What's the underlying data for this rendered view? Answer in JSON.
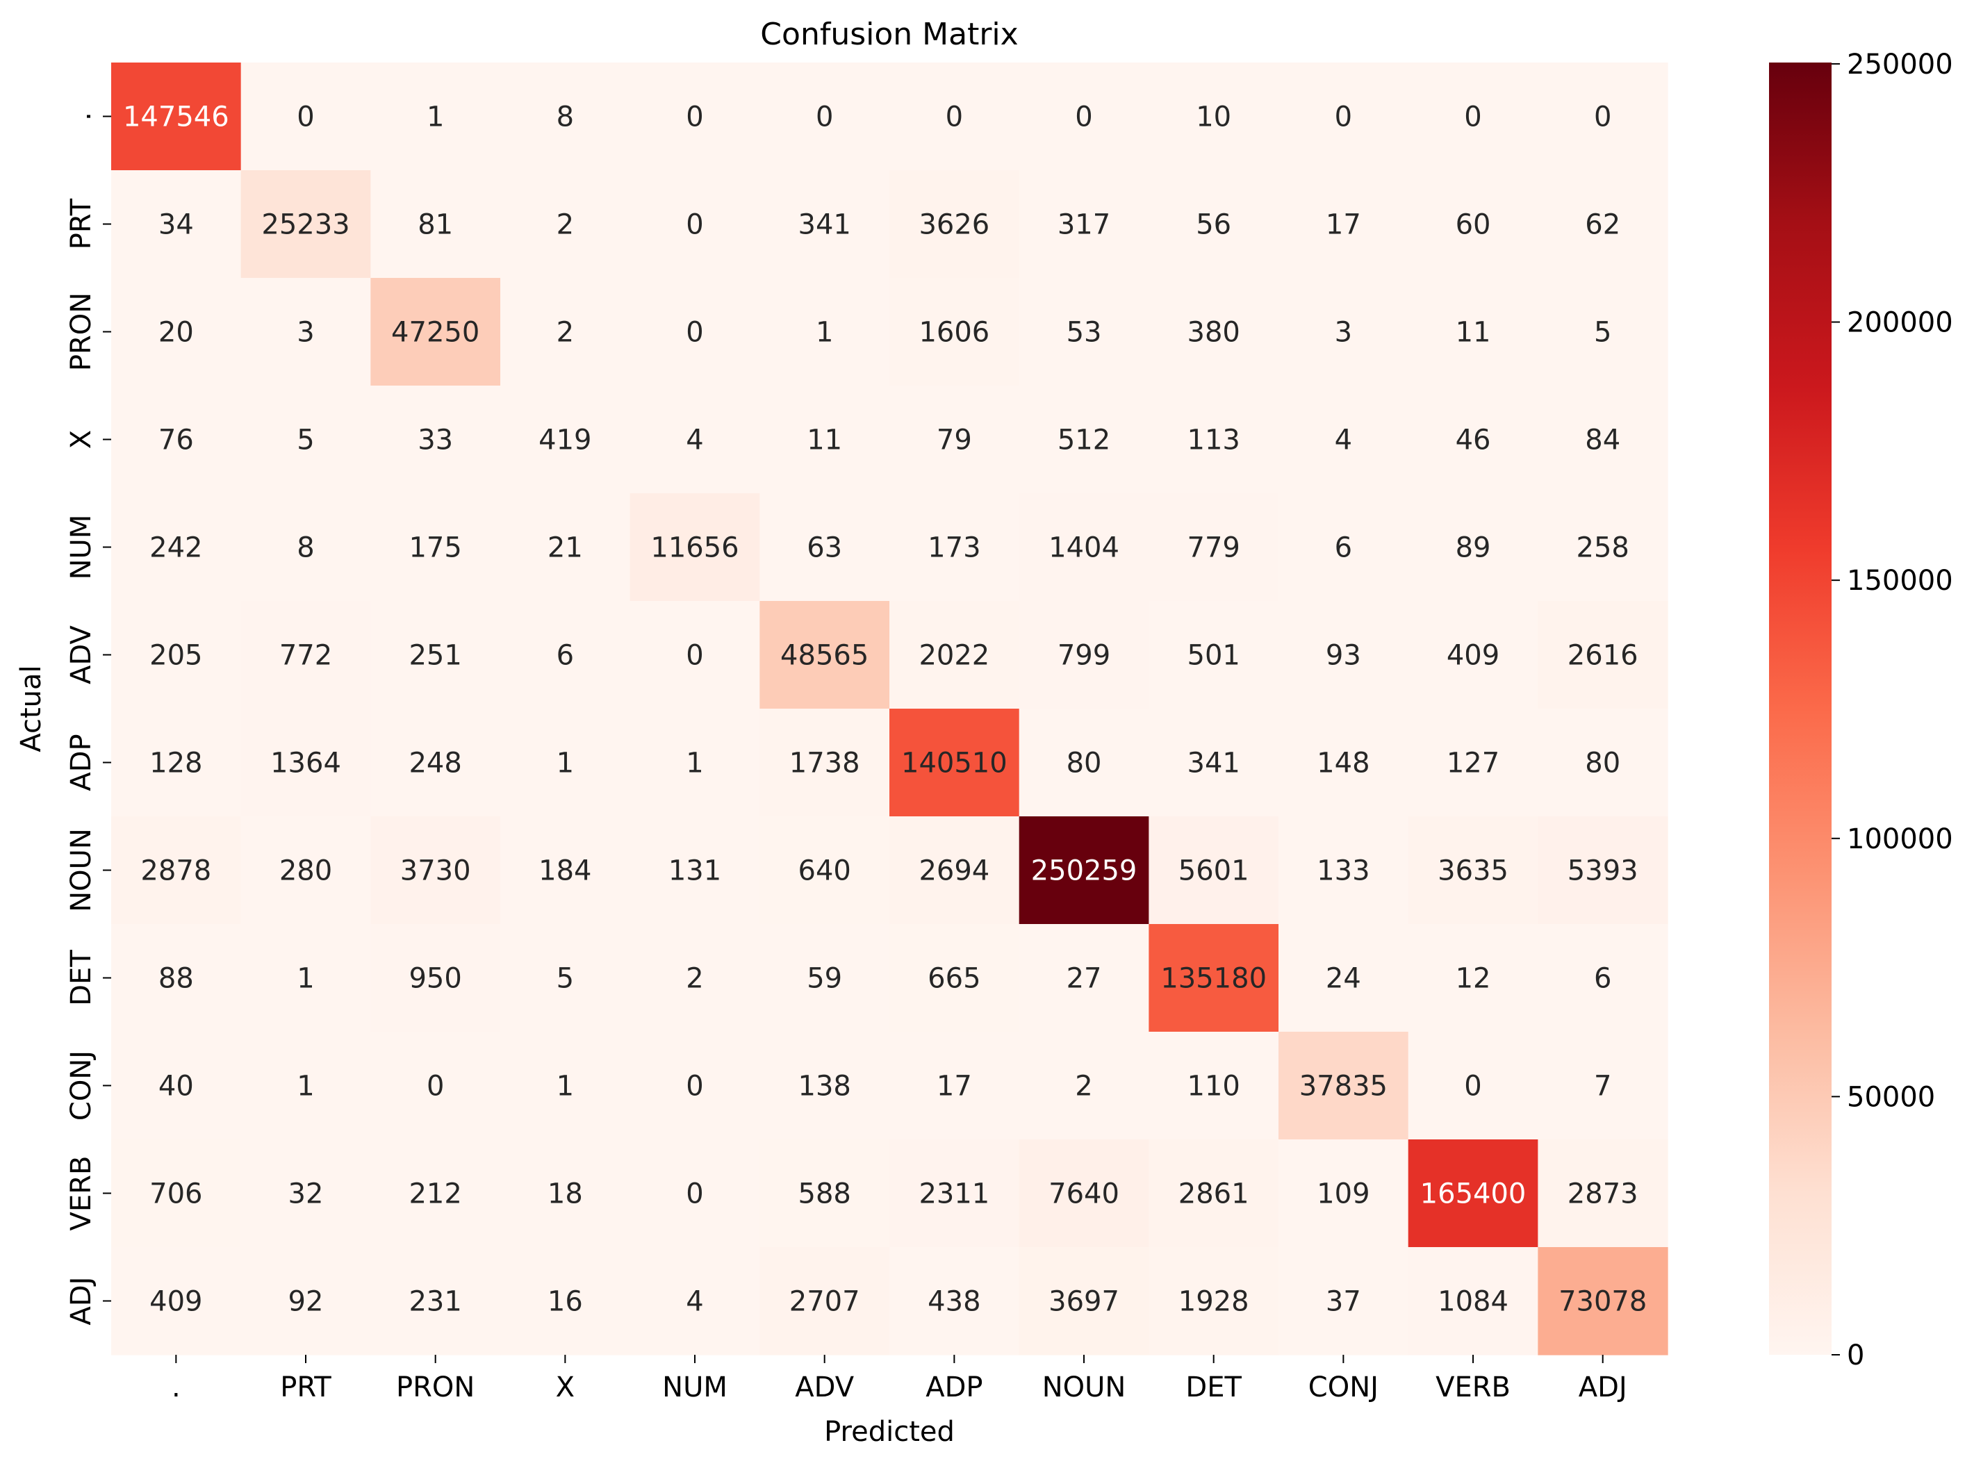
{
  "chart_data": {
    "type": "heatmap",
    "title": "Confusion Matrix",
    "xlabel": "Predicted",
    "ylabel": "Actual",
    "x_categories": [
      ".",
      "PRT",
      "PRON",
      "X",
      "NUM",
      "ADV",
      "ADP",
      "NOUN",
      "DET",
      "CONJ",
      "VERB",
      "ADJ"
    ],
    "y_categories": [
      ".",
      "PRT",
      "PRON",
      "X",
      "NUM",
      "ADV",
      "ADP",
      "NOUN",
      "DET",
      "CONJ",
      "VERB",
      "ADJ"
    ],
    "values": [
      [
        147546,
        0,
        1,
        8,
        0,
        0,
        0,
        0,
        10,
        0,
        0,
        0
      ],
      [
        34,
        25233,
        81,
        2,
        0,
        341,
        3626,
        317,
        56,
        17,
        60,
        62
      ],
      [
        20,
        3,
        47250,
        2,
        0,
        1,
        1606,
        53,
        380,
        3,
        11,
        5
      ],
      [
        76,
        5,
        33,
        419,
        4,
        11,
        79,
        512,
        113,
        4,
        46,
        84
      ],
      [
        242,
        8,
        175,
        21,
        11656,
        63,
        173,
        1404,
        779,
        6,
        89,
        258
      ],
      [
        205,
        772,
        251,
        6,
        0,
        48565,
        2022,
        799,
        501,
        93,
        409,
        2616
      ],
      [
        128,
        1364,
        248,
        1,
        1,
        1738,
        140510,
        80,
        341,
        148,
        127,
        80
      ],
      [
        2878,
        280,
        3730,
        184,
        131,
        640,
        2694,
        250259,
        5601,
        133,
        3635,
        5393
      ],
      [
        88,
        1,
        950,
        5,
        2,
        59,
        665,
        27,
        135180,
        24,
        12,
        6
      ],
      [
        40,
        1,
        0,
        1,
        0,
        138,
        17,
        2,
        110,
        37835,
        0,
        7
      ],
      [
        706,
        32,
        212,
        18,
        0,
        588,
        2311,
        7640,
        2861,
        109,
        165400,
        2873
      ],
      [
        409,
        92,
        231,
        16,
        4,
        2707,
        438,
        3697,
        1928,
        37,
        1084,
        73078
      ]
    ],
    "colormap": "Reds",
    "colorbar_range": [
      0,
      250259
    ],
    "colorbar_ticks": [
      0,
      50000,
      100000,
      150000,
      200000,
      250000
    ],
    "colorbar_tick_labels": [
      "0",
      "50000",
      "100000",
      "150000",
      "200000",
      "250000"
    ],
    "grid": false
  }
}
